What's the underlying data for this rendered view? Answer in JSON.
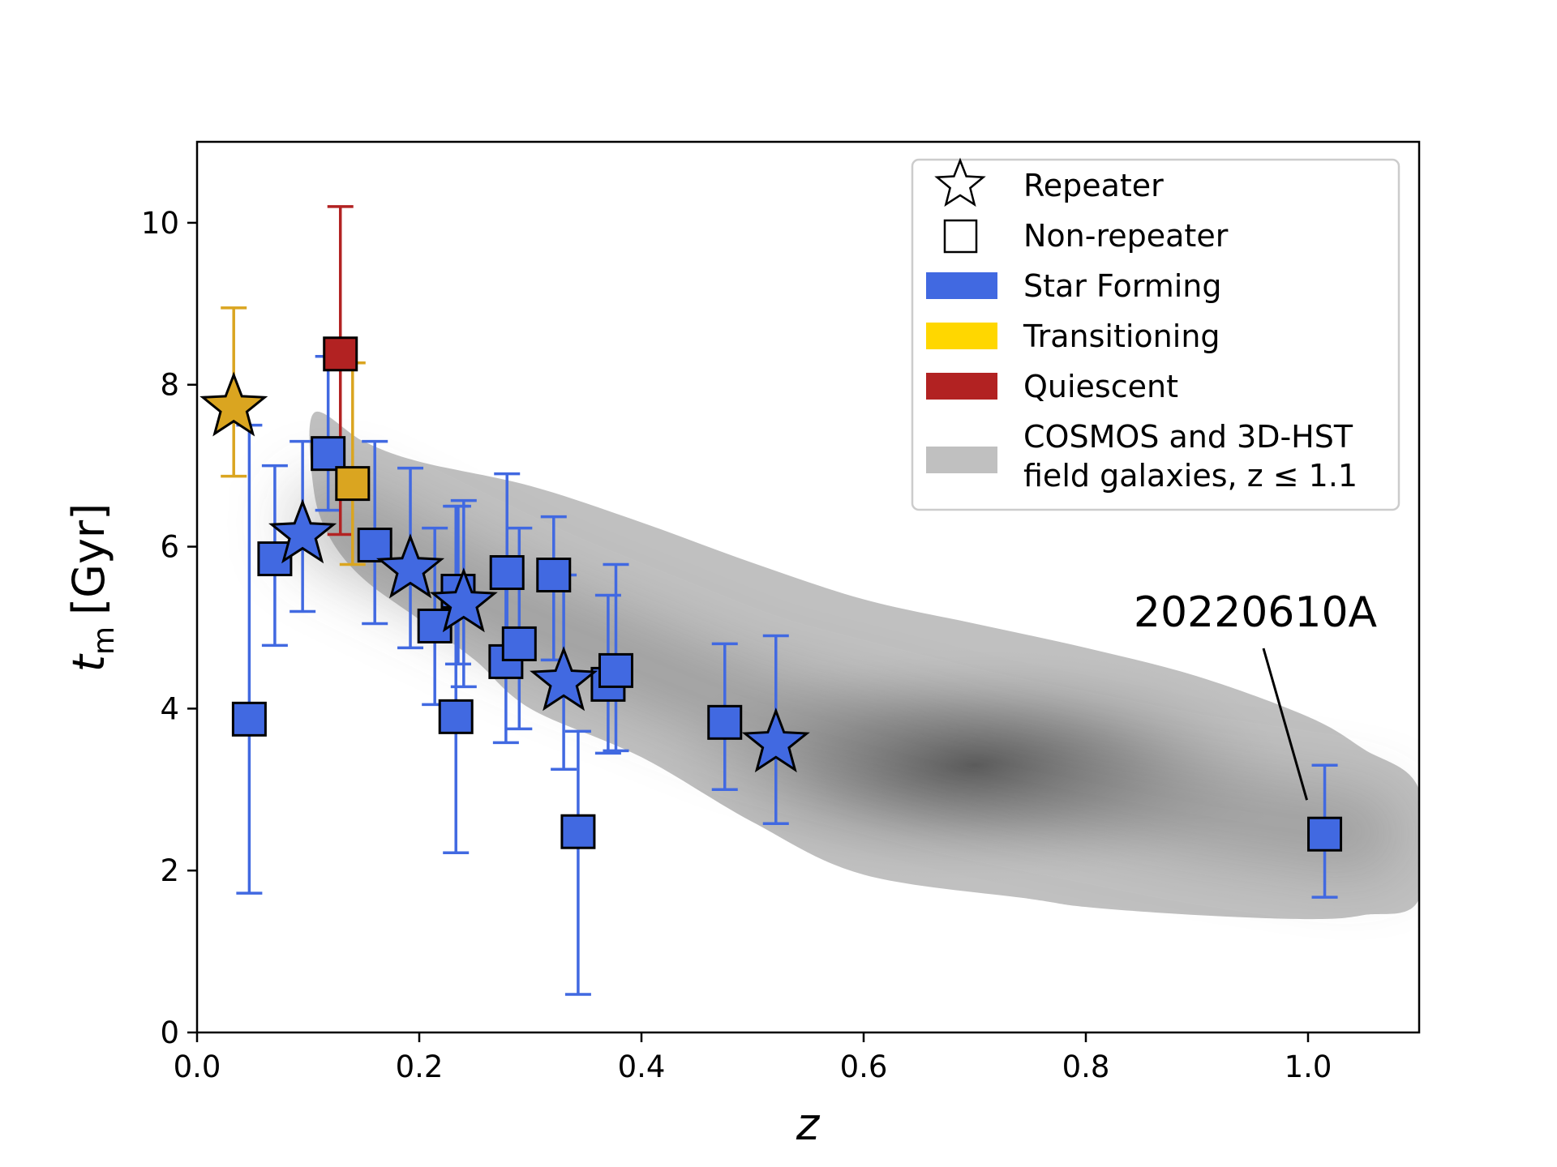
{
  "chart_data": {
    "type": "scatter",
    "title": "",
    "xlabel": "z",
    "ylabel_main": "t",
    "ylabel_sub": "m",
    "ylabel_unit": "[Gyr]",
    "xlim": [
      0.0,
      1.1
    ],
    "ylim": [
      0,
      11
    ],
    "xticks": [
      0.0,
      0.2,
      0.4,
      0.6,
      0.8,
      1.0
    ],
    "xtick_labels": [
      "0.0",
      "0.2",
      "0.4",
      "0.6",
      "0.8",
      "1.0"
    ],
    "yticks": [
      0,
      2,
      4,
      6,
      8,
      10
    ],
    "ytick_labels": [
      "0",
      "2",
      "4",
      "6",
      "8",
      "10"
    ],
    "grid": false,
    "legend_position": "top-right",
    "colors": {
      "star_forming": "#4169e1",
      "transitioning": "#daa520",
      "transitioning_patch": "#ffd700",
      "quiescent": "#b22222",
      "field": "#c0c0c0",
      "field_core": "#4a4a4a"
    },
    "legend": [
      {
        "label": "Repeater",
        "marker": "star-outline"
      },
      {
        "label": "Non-repeater",
        "marker": "square-outline"
      },
      {
        "label": "Star Forming",
        "patch": "star_forming"
      },
      {
        "label": "Transitioning",
        "patch": "transitioning_patch"
      },
      {
        "label": "Quiescent",
        "patch": "quiescent"
      },
      {
        "label_line1": "COSMOS and 3D-HST",
        "label_line2": "field galaxies, z ≤ 1.1",
        "patch": "field"
      }
    ],
    "annotation": {
      "text": "20220610A",
      "x": 1.015,
      "y": 2.45
    },
    "field_density": {
      "label": "COSMOS and 3D-HST field galaxies, z ≤ 1.1",
      "upper_edge": [
        [
          0.105,
          7.65
        ],
        [
          0.15,
          7.3
        ],
        [
          0.2,
          7.05
        ],
        [
          0.3,
          6.75
        ],
        [
          0.4,
          6.3
        ],
        [
          0.5,
          5.8
        ],
        [
          0.6,
          5.35
        ],
        [
          0.7,
          5.05
        ],
        [
          0.8,
          4.75
        ],
        [
          0.9,
          4.4
        ],
        [
          1.0,
          3.9
        ],
        [
          1.05,
          3.5
        ],
        [
          1.1,
          3.0
        ]
      ],
      "lower_edge": [
        [
          1.1,
          1.65
        ],
        [
          1.05,
          1.45
        ],
        [
          1.0,
          1.4
        ],
        [
          0.9,
          1.45
        ],
        [
          0.8,
          1.55
        ],
        [
          0.75,
          1.65
        ],
        [
          0.6,
          1.95
        ],
        [
          0.5,
          2.6
        ],
        [
          0.4,
          3.4
        ],
        [
          0.3,
          4.0
        ],
        [
          0.25,
          4.6
        ],
        [
          0.2,
          5.1
        ],
        [
          0.15,
          5.6
        ],
        [
          0.12,
          6.1
        ],
        [
          0.105,
          6.7
        ]
      ],
      "peak": {
        "z": 0.7,
        "t": 3.3
      }
    },
    "points": [
      {
        "z": 0.033,
        "t": 7.72,
        "err_lo": 6.87,
        "err_hi": 8.95,
        "marker": "star",
        "class": "transitioning"
      },
      {
        "z": 0.047,
        "t": 3.87,
        "err_lo": 1.72,
        "err_hi": 7.5,
        "marker": "square",
        "class": "star_forming"
      },
      {
        "z": 0.07,
        "t": 5.85,
        "err_lo": 4.78,
        "err_hi": 7.0,
        "marker": "square",
        "class": "star_forming"
      },
      {
        "z": 0.095,
        "t": 6.15,
        "err_lo": 5.2,
        "err_hi": 7.3,
        "marker": "star",
        "class": "star_forming"
      },
      {
        "z": 0.118,
        "t": 7.15,
        "err_lo": 6.45,
        "err_hi": 8.35,
        "marker": "square",
        "class": "star_forming"
      },
      {
        "z": 0.129,
        "t": 8.38,
        "err_lo": 6.15,
        "err_hi": 10.2,
        "marker": "square",
        "class": "quiescent"
      },
      {
        "z": 0.14,
        "t": 6.78,
        "err_lo": 5.78,
        "err_hi": 8.27,
        "marker": "square",
        "class": "transitioning"
      },
      {
        "z": 0.16,
        "t": 6.02,
        "err_lo": 5.05,
        "err_hi": 7.3,
        "marker": "square",
        "class": "star_forming"
      },
      {
        "z": 0.192,
        "t": 5.72,
        "err_lo": 4.75,
        "err_hi": 6.97,
        "marker": "star",
        "class": "star_forming"
      },
      {
        "z": 0.214,
        "t": 5.02,
        "err_lo": 4.05,
        "err_hi": 6.23,
        "marker": "square",
        "class": "star_forming"
      },
      {
        "z": 0.233,
        "t": 3.9,
        "err_lo": 2.22,
        "err_hi": 6.5,
        "marker": "square",
        "class": "star_forming"
      },
      {
        "z": 0.235,
        "t": 5.45,
        "err_lo": 4.55,
        "err_hi": 6.5,
        "marker": "square",
        "class": "star_forming"
      },
      {
        "z": 0.24,
        "t": 5.3,
        "err_lo": 4.27,
        "err_hi": 6.57,
        "marker": "star",
        "class": "star_forming"
      },
      {
        "z": 0.278,
        "t": 4.58,
        "err_lo": 3.58,
        "err_hi": 5.58,
        "marker": "square",
        "class": "star_forming"
      },
      {
        "z": 0.279,
        "t": 5.68,
        "err_lo": 4.75,
        "err_hi": 6.9,
        "marker": "square",
        "class": "star_forming"
      },
      {
        "z": 0.29,
        "t": 4.8,
        "err_lo": 3.75,
        "err_hi": 6.23,
        "marker": "square",
        "class": "star_forming"
      },
      {
        "z": 0.321,
        "t": 5.65,
        "err_lo": 4.6,
        "err_hi": 6.37,
        "marker": "square",
        "class": "star_forming"
      },
      {
        "z": 0.33,
        "t": 4.33,
        "err_lo": 3.25,
        "err_hi": 5.65,
        "marker": "star",
        "class": "star_forming"
      },
      {
        "z": 0.343,
        "t": 2.48,
        "err_lo": 0.47,
        "err_hi": 3.72,
        "marker": "square",
        "class": "star_forming"
      },
      {
        "z": 0.37,
        "t": 4.3,
        "err_lo": 3.45,
        "err_hi": 5.4,
        "marker": "square",
        "class": "star_forming"
      },
      {
        "z": 0.377,
        "t": 4.47,
        "err_lo": 3.48,
        "err_hi": 5.78,
        "marker": "square",
        "class": "star_forming"
      },
      {
        "z": 0.475,
        "t": 3.83,
        "err_lo": 3.0,
        "err_hi": 4.8,
        "marker": "square",
        "class": "star_forming"
      },
      {
        "z": 0.521,
        "t": 3.57,
        "err_lo": 2.58,
        "err_hi": 4.9,
        "marker": "star",
        "class": "star_forming"
      },
      {
        "z": 1.015,
        "t": 2.45,
        "err_lo": 1.67,
        "err_hi": 3.3,
        "marker": "square",
        "class": "star_forming"
      }
    ]
  }
}
